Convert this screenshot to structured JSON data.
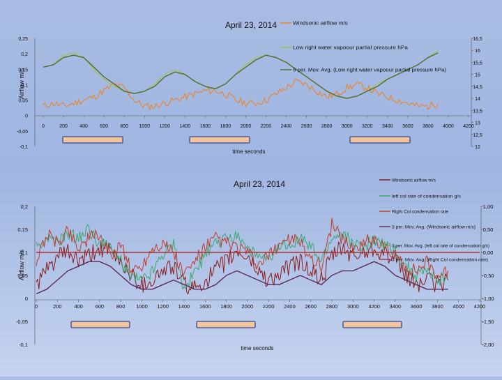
{
  "chart_data": [
    {
      "type": "line",
      "title": "April  23, 2014",
      "xlabel": "time seconds",
      "ylabel": "Airflow m/s",
      "xlim": [
        0,
        4200
      ],
      "ylim": [
        -0.1,
        0.25
      ],
      "y2lim": [
        12,
        16.5
      ],
      "x_ticks": [
        "0",
        "200",
        "400",
        "600",
        "800",
        "1000",
        "1200",
        "1400",
        "1600",
        "1800",
        "2000",
        "2200",
        "2400",
        "2600",
        "2800",
        "3000",
        "3200",
        "3400",
        "3600",
        "3800",
        "4000",
        "4200"
      ],
      "y_ticks": [
        "0,25",
        "0,2",
        "0,15",
        "0,1",
        "0,05",
        "0",
        "-0,05",
        "-0,1"
      ],
      "y2_ticks": [
        "16,5",
        "16",
        "15,5",
        "15",
        "14,5",
        "14",
        "13,5",
        "13",
        "12,5",
        "12"
      ],
      "legend_position": "top-right",
      "series": [
        {
          "name": "Windsonic airflow m/s",
          "color": "#f07f1a",
          "axis": "left",
          "x": [
            0,
            100,
            200,
            300,
            400,
            500,
            600,
            700,
            800,
            900,
            1000,
            1100,
            1200,
            1300,
            1400,
            1500,
            1600,
            1700,
            1800,
            1900,
            2000,
            2100,
            2200,
            2300,
            2400,
            2500,
            2600,
            2700,
            2800,
            2900,
            3000,
            3100,
            3200,
            3300,
            3400,
            3500,
            3600,
            3700,
            3800,
            3900
          ],
          "y": [
            0.03,
            0.04,
            0.03,
            0.04,
            0.05,
            0.06,
            0.08,
            0.1,
            0.09,
            0.05,
            0.03,
            0.03,
            0.04,
            0.05,
            0.06,
            0.07,
            0.08,
            0.08,
            0.07,
            0.05,
            0.04,
            0.04,
            0.05,
            0.07,
            0.09,
            0.11,
            0.1,
            0.08,
            0.06,
            0.07,
            0.09,
            0.1,
            0.09,
            0.07,
            0.06,
            0.05,
            0.04,
            0.03,
            0.03,
            0.04
          ]
        },
        {
          "name": "Low right water vapoour partial pressure hPa",
          "color": "#9bc53d",
          "axis": "right",
          "x": [
            0,
            100,
            200,
            300,
            400,
            500,
            600,
            700,
            800,
            900,
            1000,
            1100,
            1200,
            1300,
            1400,
            1500,
            1600,
            1700,
            1800,
            1900,
            2000,
            2100,
            2200,
            2300,
            2400,
            2500,
            2600,
            2700,
            2800,
            2900,
            3000,
            3100,
            3200,
            3300,
            3400,
            3500,
            3600,
            3700,
            3800,
            3900
          ],
          "y": [
            15.3,
            15.4,
            15.8,
            15.9,
            15.7,
            15.2,
            14.8,
            14.5,
            14.3,
            14.2,
            14.3,
            14.6,
            15.0,
            15.2,
            15.0,
            14.7,
            14.5,
            14.4,
            14.6,
            15.0,
            15.4,
            15.7,
            15.8,
            15.7,
            15.5,
            15.2,
            14.9,
            14.6,
            14.3,
            14.1,
            14.0,
            14.1,
            14.3,
            14.6,
            14.8,
            15.0,
            15.2,
            15.4,
            15.7,
            16.0
          ]
        },
        {
          "name": "5 per. Mov. Avg. (Low right water vapoour partial pressure hPa)",
          "color": "#4f6b2f",
          "axis": "right",
          "x": [
            0,
            100,
            200,
            300,
            400,
            500,
            600,
            700,
            800,
            900,
            1000,
            1100,
            1200,
            1300,
            1400,
            1500,
            1600,
            1700,
            1800,
            1900,
            2000,
            2100,
            2200,
            2300,
            2400,
            2500,
            2600,
            2700,
            2800,
            2900,
            3000,
            3100,
            3200,
            3300,
            3400,
            3500,
            3600,
            3700,
            3800,
            3900
          ],
          "y": [
            15.3,
            15.4,
            15.7,
            15.8,
            15.7,
            15.3,
            14.9,
            14.6,
            14.3,
            14.2,
            14.3,
            14.5,
            14.9,
            15.1,
            15.0,
            14.7,
            14.5,
            14.4,
            14.6,
            15.0,
            15.3,
            15.6,
            15.8,
            15.7,
            15.5,
            15.2,
            14.9,
            14.6,
            14.3,
            14.1,
            14.0,
            14.1,
            14.3,
            14.5,
            14.8,
            15.0,
            15.2,
            15.4,
            15.7,
            15.9
          ]
        }
      ]
    },
    {
      "type": "line",
      "title": "April  23, 2014",
      "xlabel": "time seconds",
      "ylabel": "Airflow m/s",
      "xlim": [
        0,
        4200
      ],
      "ylim": [
        -0.1,
        0.2
      ],
      "y2lim": [
        -2,
        1
      ],
      "x_ticks": [
        "0",
        "200",
        "400",
        "600",
        "800",
        "1000",
        "1200",
        "1400",
        "1600",
        "1800",
        "2000",
        "2200",
        "2400",
        "2600",
        "2800",
        "3000",
        "3200",
        "3400",
        "3600",
        "3800",
        "4000",
        "4200"
      ],
      "y_ticks": [
        "0,2",
        "0,15",
        "0,1",
        "0,05",
        "0",
        "-0,05",
        "-0,1"
      ],
      "y2_ticks": [
        "1,00",
        "0,50",
        "0,00",
        "-0,50",
        "-1,00",
        "-1,50",
        "-2,00"
      ],
      "legend_position": "top-right",
      "series": [
        {
          "name": "Windsonic airflow m/s",
          "color": "#8b1a1a",
          "axis": "left",
          "x": [
            0,
            100,
            200,
            300,
            400,
            500,
            600,
            700,
            800,
            900,
            1000,
            1100,
            1200,
            1300,
            1400,
            1500,
            1600,
            1700,
            1800,
            1900,
            2000,
            2100,
            2200,
            2300,
            2400,
            2500,
            2600,
            2700,
            2800,
            2900,
            3000,
            3100,
            3200,
            3300,
            3400,
            3500,
            3600,
            3700,
            3800,
            3900
          ],
          "y": [
            0.03,
            0.06,
            0.09,
            0.1,
            0.08,
            0.09,
            0.11,
            0.1,
            0.08,
            0.05,
            0.03,
            0.04,
            0.06,
            0.07,
            0.03,
            0.02,
            0.04,
            0.06,
            0.08,
            0.1,
            0.09,
            0.06,
            0.04,
            0.05,
            0.07,
            0.08,
            0.06,
            0.04,
            0.09,
            0.11,
            0.09,
            0.1,
            0.11,
            0.1,
            0.08,
            0.05,
            0.03,
            0.04,
            0.03,
            0.04
          ]
        },
        {
          "name": "left col rate of condensation g/s",
          "color": "#3aa66b",
          "axis": "right",
          "x": [
            0,
            100,
            200,
            300,
            400,
            500,
            600,
            700,
            800,
            900,
            1000,
            1100,
            1200,
            1300,
            1400,
            1500,
            1600,
            1700,
            1800,
            1900,
            2000,
            2100,
            2200,
            2300,
            2400,
            2500,
            2600,
            2700,
            2800,
            2900,
            3000,
            3100,
            3200,
            3300,
            3400,
            3500,
            3600,
            3700,
            3800,
            3900
          ],
          "y": [
            0.1,
            0.3,
            0.2,
            0.4,
            0.3,
            0.5,
            0.2,
            0.1,
            -0.2,
            -0.5,
            -0.6,
            -0.4,
            0.0,
            0.2,
            -0.8,
            -0.4,
            -0.1,
            0.2,
            0.3,
            0.4,
            0.1,
            -0.1,
            -0.2,
            0.1,
            0.2,
            0.3,
            0.1,
            -0.2,
            0.3,
            0.4,
            0.2,
            0.1,
            0.3,
            0.2,
            0.0,
            -0.3,
            -0.5,
            -0.4,
            -0.6,
            -0.5
          ]
        },
        {
          "name": "Right Col condensation rate",
          "color": "#c0392b",
          "axis": "right",
          "x": [
            0,
            100,
            200,
            300,
            400,
            500,
            600,
            700,
            800,
            900,
            1000,
            1100,
            1200,
            1300,
            1400,
            1500,
            1600,
            1700,
            1800,
            1900,
            2000,
            2100,
            2200,
            2300,
            2400,
            2500,
            2600,
            2700,
            2800,
            2900,
            3000,
            3100,
            3200,
            3300,
            3400,
            3500,
            3600,
            3700,
            3800,
            3900
          ],
          "y": [
            -0.2,
            0.4,
            0.2,
            0.5,
            0.1,
            0.3,
            0.4,
            -0.1,
            0.2,
            -0.4,
            -0.3,
            0.1,
            0.2,
            0.0,
            -0.5,
            -0.2,
            0.1,
            0.3,
            0.2,
            0.1,
            0.0,
            -0.3,
            -0.1,
            0.2,
            0.3,
            0.2,
            -0.1,
            -0.3,
            0.6,
            0.3,
            0.1,
            0.2,
            0.3,
            0.1,
            -0.1,
            -0.3,
            -0.4,
            -0.2,
            -0.5,
            -0.4
          ]
        },
        {
          "name": "3 per. Mov. Avg. (Windsonic airflow m/s)",
          "color": "#5a2a5a",
          "axis": "left",
          "x": [
            0,
            100,
            200,
            300,
            400,
            500,
            600,
            700,
            800,
            900,
            1000,
            1100,
            1200,
            1300,
            1400,
            1500,
            1600,
            1700,
            1800,
            1900,
            2000,
            2100,
            2200,
            2300,
            2400,
            2500,
            2600,
            2700,
            2800,
            2900,
            3000,
            3100,
            3200,
            3300,
            3400,
            3500,
            3600,
            3700,
            3800,
            3900
          ],
          "y": [
            0.01,
            0.02,
            0.04,
            0.06,
            0.07,
            0.08,
            0.08,
            0.07,
            0.05,
            0.03,
            0.02,
            0.02,
            0.03,
            0.04,
            0.03,
            0.02,
            0.02,
            0.03,
            0.05,
            0.06,
            0.05,
            0.04,
            0.03,
            0.03,
            0.04,
            0.05,
            0.04,
            0.03,
            0.05,
            0.06,
            0.06,
            0.07,
            0.08,
            0.07,
            0.05,
            0.04,
            0.03,
            0.02,
            0.02,
            0.02
          ]
        },
        {
          "name": "3 per. Mov. Avg. (left col rate of condensation g/s)",
          "color": "#6aa84f",
          "axis": "right",
          "x": [],
          "y": []
        },
        {
          "name": "3 per. Mov. Avg. (Right Col condensation rate)",
          "color": "#a83232",
          "axis": "right",
          "x": [
            0,
            4200
          ],
          "y": [
            0.0,
            0.0
          ]
        }
      ]
    }
  ],
  "colors": {
    "orange": "#f07f1a",
    "green": "#9bc53d",
    "dark_green": "#4f6b2f",
    "maroon": "#8b1a1a",
    "teal": "#3aa66b",
    "red": "#c0392b",
    "plum": "#5a2a5a",
    "note_fill": "#f6c49a",
    "note_border": "#4a5f9e"
  }
}
